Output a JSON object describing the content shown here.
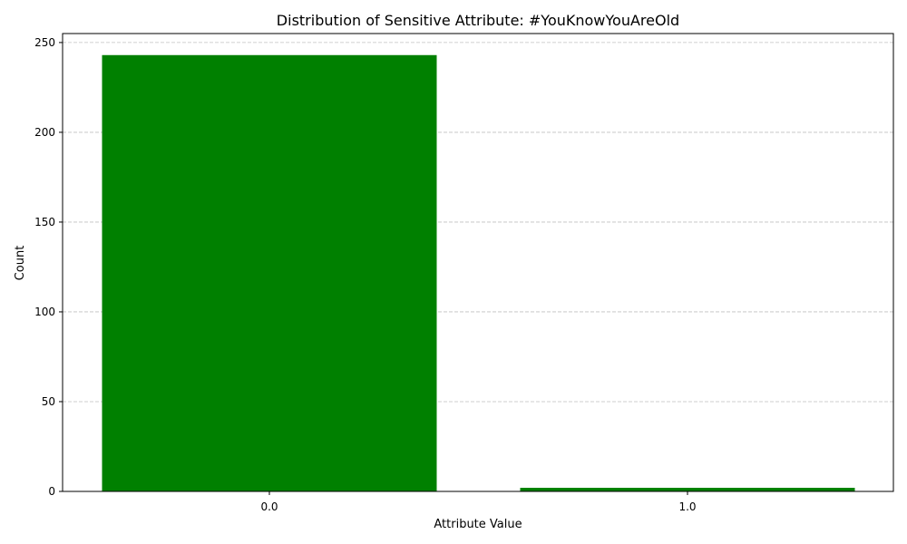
{
  "chart_data": {
    "type": "bar",
    "title": "Distribution of Sensitive Attribute: #YouKnowYouAreOld",
    "xlabel": "Attribute Value",
    "ylabel": "Count",
    "categories": [
      "0.0",
      "1.0"
    ],
    "values": [
      243,
      2
    ],
    "ylim": [
      0,
      255
    ],
    "yticks": [
      0,
      50,
      100,
      150,
      200,
      250
    ],
    "grid": "y, dashed",
    "bar_color": "#008000",
    "grid_color": "#c0c0c0"
  }
}
